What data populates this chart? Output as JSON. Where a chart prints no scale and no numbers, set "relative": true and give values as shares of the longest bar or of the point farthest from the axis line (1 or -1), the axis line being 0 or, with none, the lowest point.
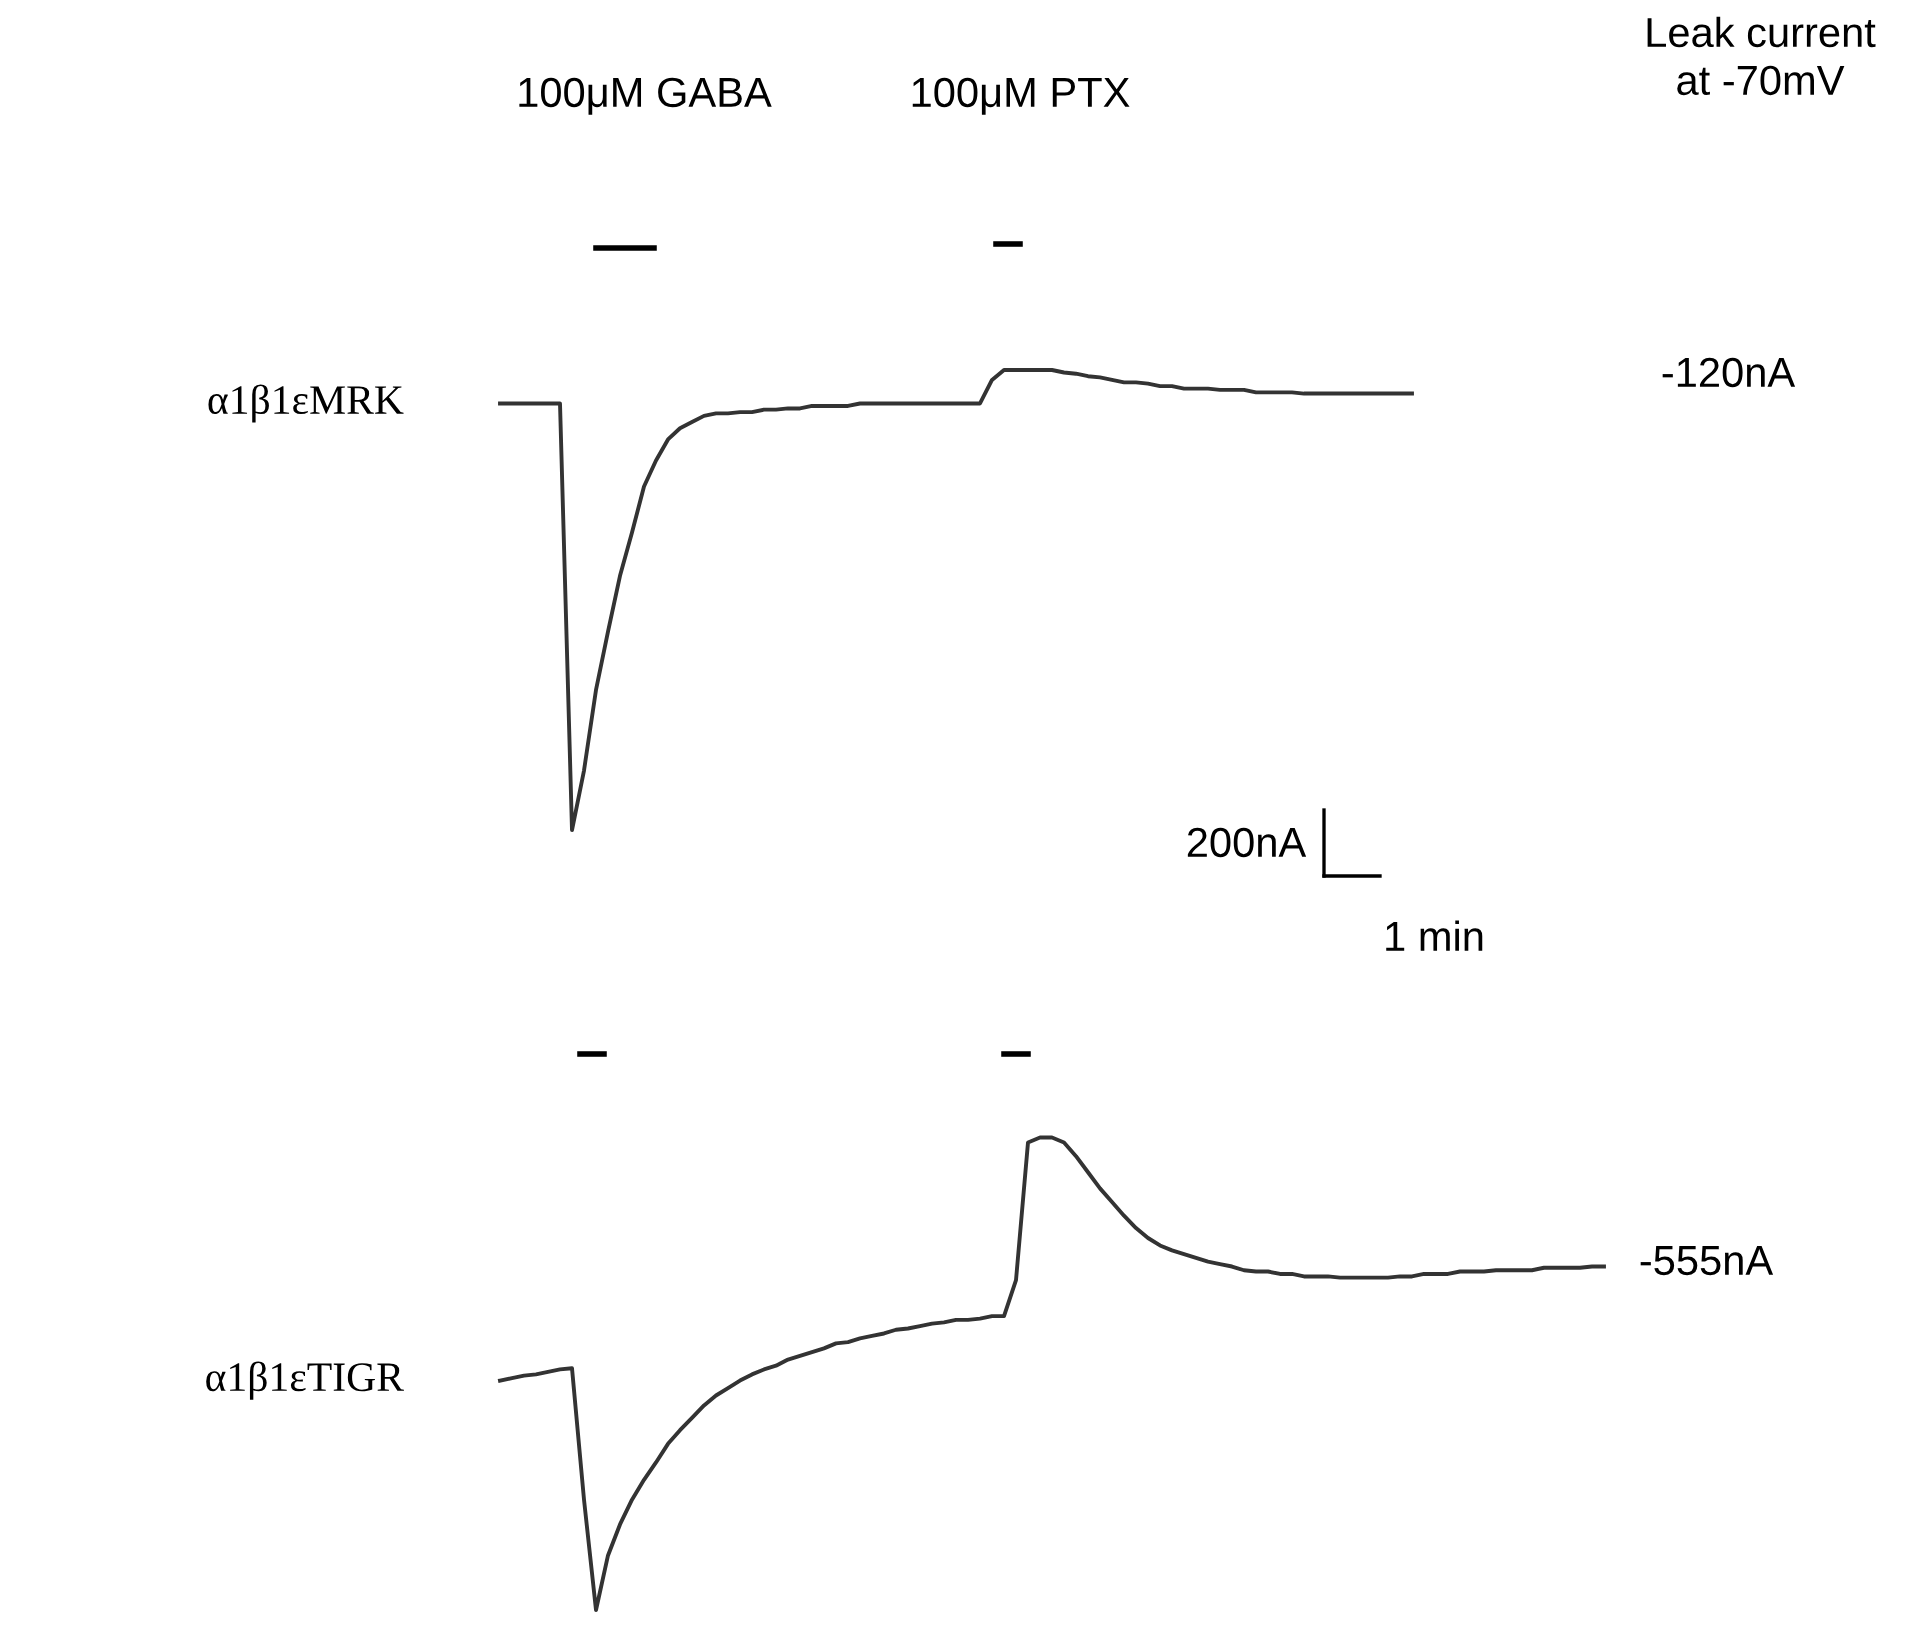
{
  "chart_data": {
    "type": "line",
    "relative": true,
    "grid": false,
    "legend": false,
    "marker": "none",
    "line_style": "solid",
    "categories": [
      null,
      null,
      null,
      null,
      null,
      null,
      null,
      null,
      null,
      null,
      null,
      null,
      null,
      null,
      null,
      null,
      null,
      null,
      null,
      null,
      null,
      null,
      null,
      null,
      null,
      null,
      null,
      null,
      null,
      null,
      null,
      null,
      null,
      null,
      null,
      null,
      null,
      null,
      null,
      null,
      null,
      null,
      null,
      null,
      null,
      null,
      null,
      null,
      null,
      null,
      null,
      null,
      null,
      null,
      null,
      null,
      null,
      null,
      null,
      null,
      null,
      null,
      null,
      null,
      null,
      null,
      null,
      null,
      null,
      null,
      null,
      null,
      null,
      null,
      null,
      null,
      null,
      null,
      null,
      null,
      null,
      null,
      null,
      null,
      null,
      null,
      null,
      null,
      null,
      null,
      null,
      null,
      null
    ],
    "series": [
      {
        "name": "α1β1εMRK",
        "color": "#333333",
        "values": [
          0.973,
          0.973,
          0.973,
          0.973,
          0.973,
          0.973,
          0.629,
          0.677,
          0.742,
          0.789,
          0.834,
          0.869,
          0.906,
          0.927,
          0.944,
          0.953,
          0.958,
          0.963,
          0.965,
          0.965,
          0.966,
          0.966,
          0.968,
          0.968,
          0.969,
          0.969,
          0.971,
          0.971,
          0.971,
          0.971,
          0.973,
          0.973,
          0.973,
          0.973,
          0.973,
          0.973,
          0.973,
          0.973,
          0.973,
          0.973,
          0.973,
          0.992,
          1,
          1,
          1,
          1,
          1,
          0.998,
          0.997,
          0.995,
          0.994,
          0.992,
          0.99,
          0.99,
          0.989,
          0.987,
          0.987,
          0.985,
          0.985,
          0.985,
          0.984,
          0.984,
          0.984,
          0.982,
          0.982,
          0.982,
          0.982,
          0.981,
          0.981,
          0.981,
          0.981,
          0.981,
          0.981,
          0.981,
          0.981,
          0.981,
          0.981,
          null,
          null,
          null,
          null,
          null,
          null,
          null,
          null,
          null,
          null,
          null,
          null,
          null,
          null,
          null,
          null
        ]
      },
      {
        "name": "α1β1εTIGR",
        "color": "#333333",
        "values": [
          0.185,
          0.187,
          0.189,
          0.19,
          0.192,
          0.194,
          0.195,
          0.089,
          0,
          0.044,
          0.069,
          0.089,
          0.105,
          0.119,
          0.134,
          0.145,
          0.155,
          0.165,
          0.173,
          0.179,
          0.185,
          0.19,
          0.194,
          0.197,
          0.202,
          0.205,
          0.208,
          0.211,
          0.215,
          0.216,
          0.219,
          0.221,
          0.223,
          0.226,
          0.227,
          0.229,
          0.231,
          0.232,
          0.234,
          0.234,
          0.235,
          0.237,
          0.237,
          0.266,
          0.377,
          0.381,
          0.381,
          0.377,
          0.366,
          0.353,
          0.34,
          0.329,
          0.318,
          0.308,
          0.3,
          0.294,
          0.29,
          0.287,
          0.284,
          0.281,
          0.279,
          0.277,
          0.274,
          0.273,
          0.273,
          0.271,
          0.271,
          0.269,
          0.269,
          0.269,
          0.268,
          0.268,
          0.268,
          0.268,
          0.268,
          0.269,
          0.269,
          0.271,
          0.271,
          0.271,
          0.273,
          0.273,
          0.273,
          0.274,
          0.274,
          0.274,
          0.274,
          0.276,
          0.276,
          0.276,
          0.276,
          0.277,
          0.277
        ]
      }
    ],
    "annotations": [
      "100μM GABA",
      "100μM PTX",
      "Leak current\nat -70mV",
      "-120nA",
      "-555nA",
      "200nA",
      "1 min"
    ]
  }
}
